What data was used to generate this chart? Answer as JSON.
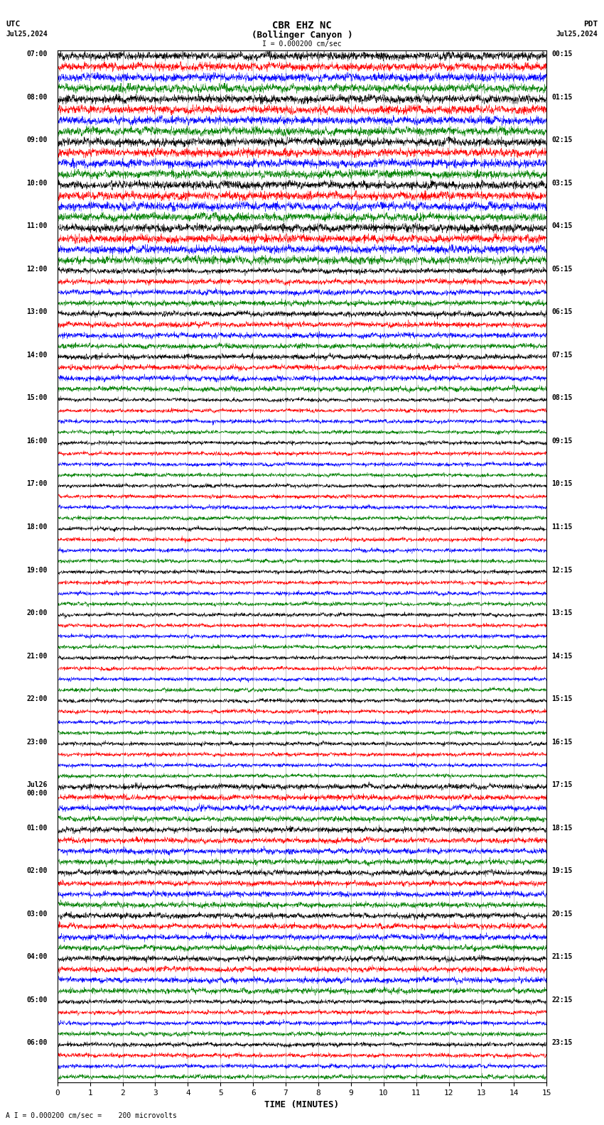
{
  "title_line1": "CBR EHZ NC",
  "title_line2": "(Bollinger Canyon )",
  "scale_label": "I = 0.000200 cm/sec",
  "bottom_label": "A I = 0.000200 cm/sec =    200 microvolts",
  "xlabel": "TIME (MINUTES)",
  "utc_label": "UTC",
  "pdt_label": "PDT",
  "date_left": "Jul25,2024",
  "date_right": "Jul25,2024",
  "left_times_labeled": [
    [
      0,
      "07:00"
    ],
    [
      4,
      "08:00"
    ],
    [
      8,
      "09:00"
    ],
    [
      12,
      "10:00"
    ],
    [
      16,
      "11:00"
    ],
    [
      20,
      "12:00"
    ],
    [
      24,
      "13:00"
    ],
    [
      28,
      "14:00"
    ],
    [
      32,
      "15:00"
    ],
    [
      36,
      "16:00"
    ],
    [
      40,
      "17:00"
    ],
    [
      44,
      "18:00"
    ],
    [
      48,
      "19:00"
    ],
    [
      52,
      "20:00"
    ],
    [
      56,
      "21:00"
    ],
    [
      60,
      "22:00"
    ],
    [
      64,
      "23:00"
    ],
    [
      68,
      "Jul26\n00:00"
    ],
    [
      72,
      "01:00"
    ],
    [
      76,
      "02:00"
    ],
    [
      80,
      "03:00"
    ],
    [
      84,
      "04:00"
    ],
    [
      88,
      "05:00"
    ],
    [
      92,
      "06:00"
    ]
  ],
  "right_times_labeled": [
    [
      0,
      "00:15"
    ],
    [
      4,
      "01:15"
    ],
    [
      8,
      "02:15"
    ],
    [
      12,
      "03:15"
    ],
    [
      16,
      "04:15"
    ],
    [
      20,
      "05:15"
    ],
    [
      24,
      "06:15"
    ],
    [
      28,
      "07:15"
    ],
    [
      32,
      "08:15"
    ],
    [
      36,
      "09:15"
    ],
    [
      40,
      "10:15"
    ],
    [
      44,
      "11:15"
    ],
    [
      48,
      "12:15"
    ],
    [
      52,
      "13:15"
    ],
    [
      56,
      "14:15"
    ],
    [
      60,
      "15:15"
    ],
    [
      64,
      "16:15"
    ],
    [
      68,
      "17:15"
    ],
    [
      72,
      "18:15"
    ],
    [
      76,
      "19:15"
    ],
    [
      80,
      "20:15"
    ],
    [
      84,
      "21:15"
    ],
    [
      88,
      "22:15"
    ],
    [
      92,
      "23:15"
    ]
  ],
  "trace_colors": [
    "black",
    "red",
    "blue",
    "green"
  ],
  "n_rows": 96,
  "n_minutes": 15,
  "xmin": 0,
  "xmax": 15,
  "background_color": "white",
  "fontsize_title": 10,
  "fontsize_labels": 8,
  "fontsize_time": 8
}
